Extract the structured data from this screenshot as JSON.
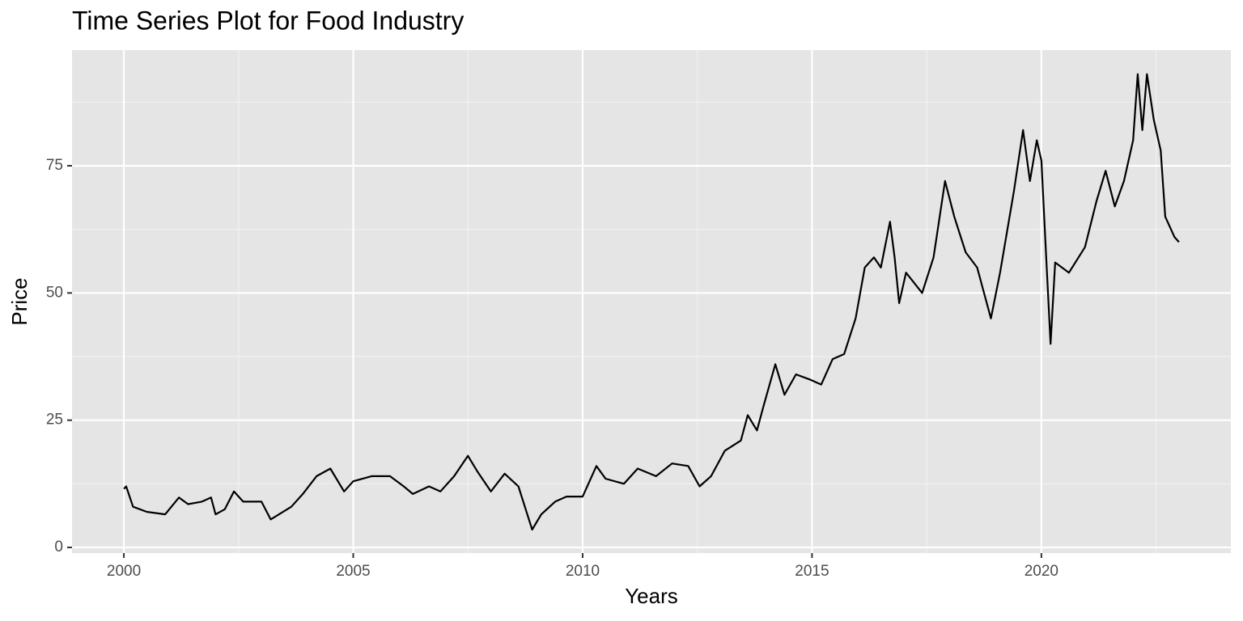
{
  "chart_data": {
    "type": "line",
    "title": "Time Series Plot for Food Industry",
    "x_label": "Years",
    "y_label": "Price",
    "x": [
      2000.0,
      2000.05,
      2000.2,
      2000.5,
      2000.9,
      2001.2,
      2001.4,
      2001.7,
      2001.9,
      2002.0,
      2002.2,
      2002.4,
      2002.6,
      2003.0,
      2003.2,
      2003.65,
      2003.9,
      2004.2,
      2004.5,
      2004.8,
      2005.0,
      2005.4,
      2005.8,
      2006.1,
      2006.3,
      2006.65,
      2006.9,
      2007.2,
      2007.5,
      2007.7,
      2008.0,
      2008.3,
      2008.6,
      2008.9,
      2009.1,
      2009.4,
      2009.65,
      2010.0,
      2010.3,
      2010.5,
      2010.9,
      2011.2,
      2011.6,
      2011.95,
      2012.3,
      2012.55,
      2012.8,
      2013.1,
      2013.45,
      2013.6,
      2013.8,
      2013.95,
      2014.2,
      2014.4,
      2014.65,
      2014.95,
      2015.2,
      2015.45,
      2015.7,
      2015.95,
      2016.15,
      2016.35,
      2016.5,
      2016.7,
      2016.8,
      2016.9,
      2017.05,
      2017.4,
      2017.65,
      2017.9,
      2018.1,
      2018.35,
      2018.6,
      2018.9,
      2019.1,
      2019.4,
      2019.6,
      2019.75,
      2019.9,
      2020.0,
      2020.1,
      2020.2,
      2020.3,
      2020.6,
      2020.95,
      2021.2,
      2021.4,
      2021.6,
      2021.8,
      2022.0,
      2022.1,
      2022.2,
      2022.3,
      2022.45,
      2022.6,
      2022.7,
      2022.9,
      2023.0
    ],
    "series": [
      {
        "color": "#000000",
        "values": [
          11.5,
          12,
          8,
          7,
          6.5,
          9.8,
          8.5,
          9,
          9.8,
          6.5,
          7.5,
          11,
          9,
          9,
          5.5,
          8,
          10.5,
          14,
          15.5,
          11,
          13,
          14,
          14,
          12,
          10.5,
          12,
          11,
          14,
          18,
          15,
          11,
          14.5,
          12,
          3.5,
          6.5,
          9,
          10,
          10,
          16,
          13.5,
          12.5,
          15.5,
          14,
          16.5,
          16,
          12,
          14,
          19,
          21,
          26,
          23,
          28,
          36,
          30,
          34,
          33,
          32,
          37,
          38,
          45,
          55,
          57,
          55,
          64,
          57,
          48,
          54,
          50,
          57,
          72,
          65,
          58,
          55,
          45,
          54,
          70,
          82,
          72,
          80,
          76,
          58,
          40,
          56,
          54,
          59,
          68,
          74,
          67,
          72,
          80,
          93,
          82,
          93,
          84,
          78,
          65,
          61,
          60
        ]
      }
    ],
    "xlim": [
      1998.87,
      2024.13
    ],
    "xticks": [
      2000,
      2005,
      2010,
      2015,
      2020
    ],
    "ylim": [
      -1.11,
      97.72
    ],
    "yticks": [
      0,
      25,
      50,
      75
    ],
    "grid": true,
    "minor_grid": true
  }
}
